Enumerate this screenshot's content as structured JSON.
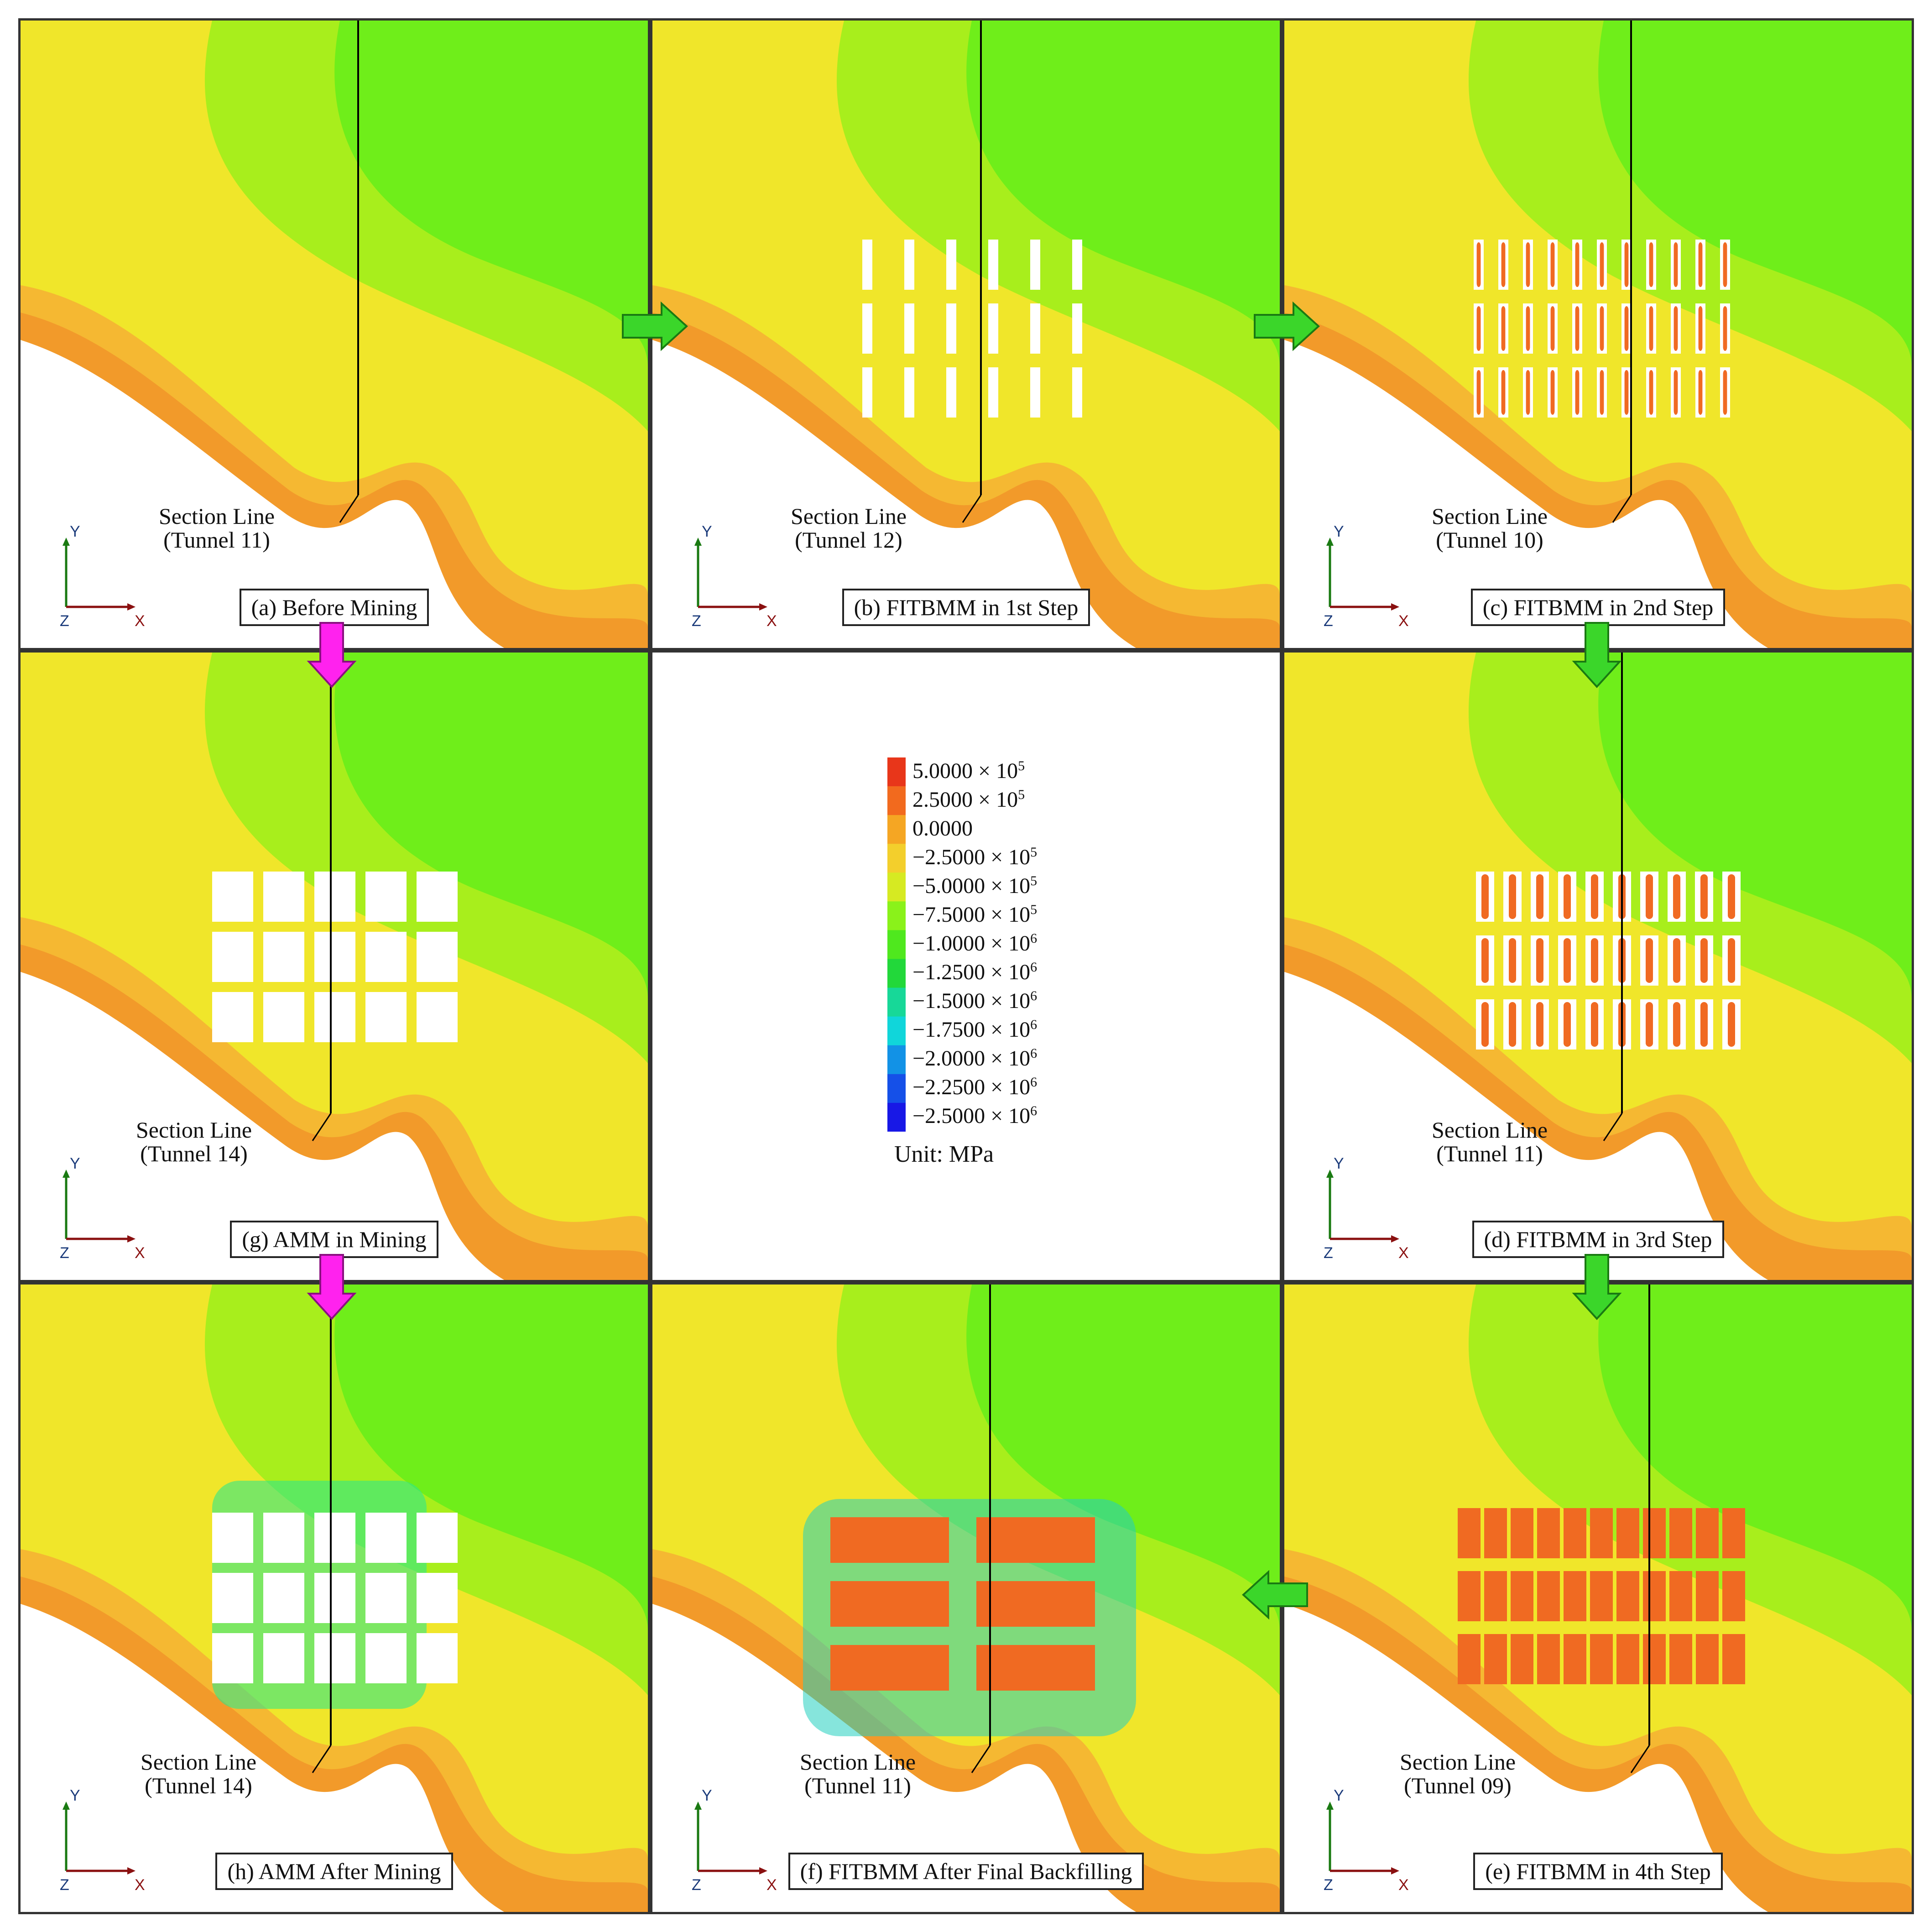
{
  "panels": [
    {
      "id": "a",
      "caption": "(a) Before Mining",
      "section_line": "Section Line",
      "tunnel": "(Tunnel 11)",
      "mode": "before"
    },
    {
      "id": "b",
      "caption": "(b) FITBMM in 1st Step",
      "section_line": "Section Line",
      "tunnel": "(Tunnel 12)",
      "mode": "step1"
    },
    {
      "id": "c",
      "caption": "(c) FITBMM in 2nd Step",
      "section_line": "Section Line",
      "tunnel": "(Tunnel 10)",
      "mode": "step2"
    },
    {
      "id": "g",
      "caption": "(g) AMM in Mining",
      "section_line": "Section Line",
      "tunnel": "(Tunnel 14)",
      "mode": "amm"
    },
    {
      "id": "d",
      "caption": "(d) FITBMM in 3rd  Step",
      "section_line": "Section Line",
      "tunnel": "(Tunnel 11)",
      "mode": "step3"
    },
    {
      "id": "h",
      "caption": "(h) AMM After Mining",
      "section_line": "Section Line",
      "tunnel": "(Tunnel 14)",
      "mode": "ammafter"
    },
    {
      "id": "f",
      "caption": "(f) FITBMM After Final Backfilling",
      "section_line": "Section Line",
      "tunnel": "(Tunnel 11)",
      "mode": "final"
    },
    {
      "id": "e",
      "caption": "(e) FITBMM in 4th Step",
      "section_line": "Section Line",
      "tunnel": "(Tunnel 09)",
      "mode": "step4"
    }
  ],
  "axes": {
    "x": "X",
    "y": "Y",
    "z": "Z"
  },
  "legend": {
    "unit": "Unit: MPa",
    "entries": [
      {
        "mantissa": "5.0000",
        "exp": "5",
        "label": "5.0000 × 10",
        "color": "#e8361a"
      },
      {
        "mantissa": "2.5000",
        "exp": "5",
        "label": "2.5000 × 10",
        "color": "#f26a1e"
      },
      {
        "mantissa": "0.0000",
        "exp": "",
        "label": "0.0000",
        "color": "#f5a623"
      },
      {
        "mantissa": "−2.5000",
        "exp": "5",
        "label": "−2.5000 × 10",
        "color": "#f3cf2c"
      },
      {
        "mantissa": "−5.0000",
        "exp": "5",
        "label": "−5.0000 × 10",
        "color": "#d6ea22"
      },
      {
        "mantissa": "−7.5000",
        "exp": "5",
        "label": "−7.5000 × 10",
        "color": "#8af21a"
      },
      {
        "mantissa": "−1.0000",
        "exp": "6",
        "label": "−1.0000 × 10",
        "color": "#4fe81e"
      },
      {
        "mantissa": "−1.2500",
        "exp": "6",
        "label": "−1.2500 × 10",
        "color": "#22d83a"
      },
      {
        "mantissa": "−1.5000",
        "exp": "6",
        "label": "−1.5000 × 10",
        "color": "#17d898"
      },
      {
        "mantissa": "−1.7500",
        "exp": "6",
        "label": "−1.7500 × 10",
        "color": "#10d6da"
      },
      {
        "mantissa": "−2.0000",
        "exp": "6",
        "label": "−2.0000 × 10",
        "color": "#1292e6"
      },
      {
        "mantissa": "−2.2500",
        "exp": "6",
        "label": "−2.2500 × 10",
        "color": "#1550e8"
      },
      {
        "mantissa": "−2.5000",
        "exp": "6",
        "label": "−2.5000 × 10",
        "color": "#1818e6"
      }
    ]
  },
  "colors": {
    "green_arrow": "#3bd62a",
    "magenta_arrow": "#ff22ee",
    "band_outer": "#f29a2a",
    "band_mid": "#f5b832",
    "yellow": "#f0e62a",
    "lime": "#a8ee1c",
    "green": "#6fee1a",
    "backfill": "#f06a22"
  }
}
